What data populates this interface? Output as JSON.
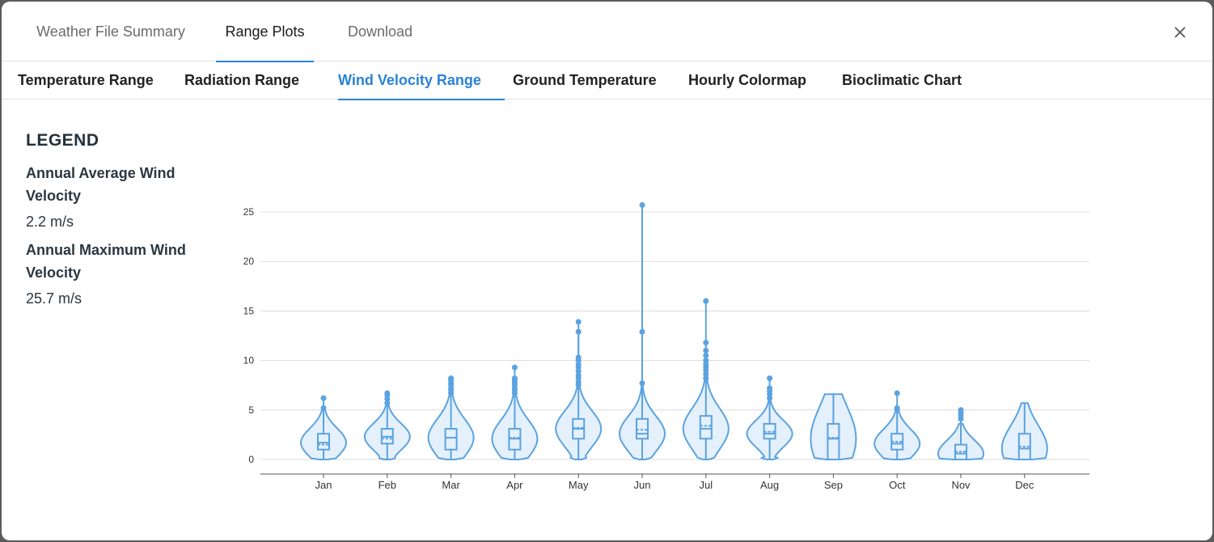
{
  "top_tabs": [
    {
      "label": "Weather File Summary"
    },
    {
      "label": "Range Plots"
    },
    {
      "label": "Download"
    }
  ],
  "sub_tabs": [
    {
      "label": "Temperature Range"
    },
    {
      "label": "Radiation Range"
    },
    {
      "label": "Wind Velocity Range"
    },
    {
      "label": "Ground Temperature"
    },
    {
      "label": "Hourly Colormap"
    },
    {
      "label": "Bioclimatic Chart"
    }
  ],
  "legend": {
    "title": "LEGEND",
    "avg_label": "Annual Average Wind Velocity",
    "avg_value": "2.2 m/s",
    "max_label": "Annual Maximum Wind Velocity",
    "max_value": "25.7 m/s"
  },
  "colors": {
    "accent": "#2a82d6",
    "series": "#5ba3e0",
    "series_fill": "#e4f0fb"
  },
  "chart_data": {
    "type": "violin",
    "categories": [
      "Jan",
      "Feb",
      "Mar",
      "Apr",
      "May",
      "Jun",
      "Jul",
      "Aug",
      "Sep",
      "Oct",
      "Nov",
      "Dec"
    ],
    "ylim": [
      0,
      26
    ],
    "yticks": [
      0,
      5,
      10,
      15,
      20,
      25
    ],
    "grid": true,
    "series": [
      {
        "month": "Jan",
        "min": 0,
        "q1": 1.0,
        "median": 1.7,
        "mean": 1.5,
        "q3": 2.6,
        "whisker_high": 5.0,
        "outliers": [
          5.2,
          6.2
        ]
      },
      {
        "month": "Feb",
        "min": 0,
        "q1": 1.6,
        "median": 2.3,
        "mean": 2.1,
        "q3": 3.1,
        "whisker_high": 5.5,
        "outliers": [
          5.7,
          6.1,
          6.5,
          6.7
        ]
      },
      {
        "month": "Mar",
        "min": 0,
        "q1": 1.0,
        "median": 2.2,
        "mean": 2.2,
        "q3": 3.1,
        "whisker_high": 6.5,
        "outliers": [
          6.7,
          7.0,
          7.2,
          7.5,
          7.7,
          8.0,
          8.2
        ]
      },
      {
        "month": "Apr",
        "min": 0,
        "q1": 1.0,
        "median": 2.1,
        "mean": 2.2,
        "q3": 3.1,
        "whisker_high": 6.5,
        "outliers": [
          6.7,
          7.0,
          7.2,
          7.5,
          7.7,
          8.0,
          8.2,
          9.3
        ]
      },
      {
        "month": "May",
        "min": 0,
        "q1": 2.1,
        "median": 3.1,
        "mean": 3.2,
        "q3": 4.1,
        "whisker_high": 7.2,
        "outliers": [
          7.5,
          7.8,
          8.2,
          8.5,
          8.9,
          9.3,
          9.6,
          10.0,
          10.3,
          12.9,
          13.9
        ]
      },
      {
        "month": "Jun",
        "min": 0,
        "q1": 2.1,
        "median": 2.6,
        "mean": 3.0,
        "q3": 4.1,
        "whisker_high": 7.5,
        "outliers": [
          7.7,
          12.9,
          25.7
        ]
      },
      {
        "month": "Jul",
        "min": 0,
        "q1": 2.1,
        "median": 3.1,
        "mean": 3.4,
        "q3": 4.4,
        "whisker_high": 7.9,
        "outliers": [
          8.2,
          8.6,
          9.0,
          9.3,
          9.6,
          10.0,
          10.5,
          11.0,
          11.8,
          16.0
        ]
      },
      {
        "month": "Aug",
        "min": 0,
        "q1": 2.1,
        "median": 2.6,
        "mean": 2.8,
        "q3": 3.6,
        "whisker_high": 6.0,
        "outliers": [
          6.2,
          6.6,
          6.9,
          7.2,
          8.2
        ]
      },
      {
        "month": "Sep",
        "min": 0,
        "q1": 0,
        "median": 2.1,
        "mean": 2.2,
        "q3": 3.6,
        "whisker_high": 6.6,
        "outliers": []
      },
      {
        "month": "Oct",
        "min": 0,
        "q1": 1.0,
        "median": 1.6,
        "mean": 1.8,
        "q3": 2.6,
        "whisker_high": 4.8,
        "outliers": [
          5.0,
          5.2,
          6.7
        ]
      },
      {
        "month": "Nov",
        "min": 0,
        "q1": 0,
        "median": 0.6,
        "mean": 0.8,
        "q3": 1.5,
        "whisker_high": 3.6,
        "outliers": [
          4.1,
          4.4,
          4.7,
          5.0
        ]
      },
      {
        "month": "Dec",
        "min": 0,
        "q1": 0,
        "median": 1.1,
        "mean": 1.3,
        "q3": 2.6,
        "whisker_high": 5.7,
        "outliers": []
      }
    ]
  }
}
